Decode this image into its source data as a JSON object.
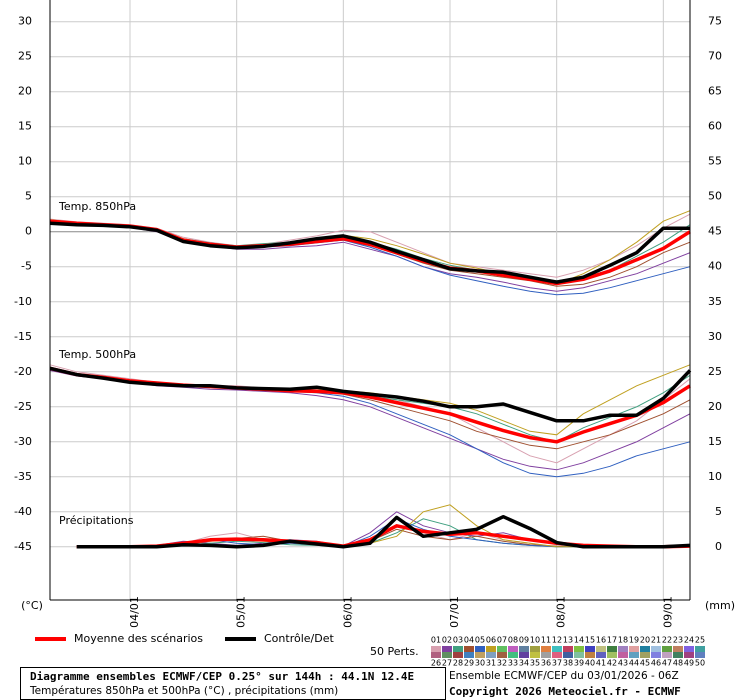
{
  "chart_data": {
    "type": "line",
    "xlim": [
      0,
      144
    ],
    "xticks": [
      {
        "value": 18,
        "label": "04/01"
      },
      {
        "value": 42,
        "label": "05/01"
      },
      {
        "value": 66,
        "label": "06/01"
      },
      {
        "value": 90,
        "label": "07/01"
      },
      {
        "value": 114,
        "label": "08/01"
      },
      {
        "value": 138,
        "label": "09/01"
      }
    ],
    "ylim": [
      -52.6,
      33.1
    ],
    "yticks": [
      30,
      25,
      20,
      15,
      10,
      5,
      0,
      -5,
      -10,
      -15,
      -20,
      -25,
      -30,
      -35,
      -40,
      -45
    ],
    "y2lim": [
      -7.6,
      78.1
    ],
    "y2ticks": [
      75,
      70,
      65,
      60,
      55,
      50,
      45,
      40,
      35,
      30,
      25,
      20,
      15,
      10,
      5,
      0
    ],
    "ylabel": "(°C)",
    "y2label": "(mm)",
    "grid": true,
    "annotations": [
      "Temp. 850hPa",
      "Temp. 500hPa",
      "Précipitations"
    ],
    "x": [
      0,
      6,
      12,
      18,
      24,
      30,
      36,
      42,
      48,
      54,
      60,
      66,
      72,
      78,
      84,
      90,
      96,
      102,
      108,
      114,
      120,
      126,
      132,
      138,
      144
    ],
    "series": [
      {
        "name": "Moyenne des scénarios",
        "color": "#ff0000",
        "values": [
          1.5,
          1.2,
          1.0,
          0.8,
          0.3,
          -1.2,
          -1.8,
          -2.2,
          -2.0,
          -1.8,
          -1.4,
          -1.0,
          -1.8,
          -3.0,
          -4.2,
          -5.2,
          -5.6,
          -6.2,
          -6.8,
          -7.4,
          -6.8,
          -5.6,
          -4.0,
          -2.4,
          0.0
        ]
      },
      {
        "name": "Contrôle/Det",
        "color": "#000000",
        "values": [
          1.2,
          1.0,
          0.9,
          0.7,
          0.2,
          -1.4,
          -2.0,
          -2.3,
          -2.1,
          -1.6,
          -1.0,
          -0.6,
          -1.5,
          -2.8,
          -4.0,
          -5.3,
          -5.6,
          -5.8,
          -6.5,
          -7.2,
          -6.5,
          -4.8,
          -3.0,
          0.5,
          0.5
        ]
      },
      {
        "name": "Moyenne des scénarios",
        "color": "#ff0000",
        "values": [
          -19.5,
          -20.4,
          -20.8,
          -21.3,
          -21.6,
          -21.9,
          -22.1,
          -22.3,
          -22.5,
          -22.7,
          -22.8,
          -23.0,
          -23.6,
          -24.4,
          -25.2,
          -26.0,
          -27.2,
          -28.4,
          -29.4,
          -30.0,
          -28.6,
          -27.4,
          -26.2,
          -24.4,
          -22.0
        ]
      },
      {
        "name": "Contrôle/Det",
        "color": "#000000",
        "values": [
          -19.5,
          -20.4,
          -20.9,
          -21.5,
          -21.8,
          -22.0,
          -22.0,
          -22.3,
          -22.4,
          -22.5,
          -22.2,
          -22.8,
          -23.2,
          -23.6,
          -24.2,
          -25.0,
          -25.0,
          -24.6,
          -25.8,
          -27.0,
          -27.0,
          -26.2,
          -26.2,
          -23.8,
          -19.8
        ]
      },
      {
        "name": "Moyenne des scénarios",
        "color": "#ff0000",
        "axis": "y2",
        "values": [
          null,
          0,
          0,
          0,
          0.1,
          0.5,
          1.0,
          1.1,
          1.0,
          0.8,
          0.6,
          0.1,
          1.0,
          3.0,
          2.2,
          1.8,
          2.0,
          1.5,
          1.0,
          0.5,
          0.2,
          0.1,
          0,
          0,
          0.1
        ]
      },
      {
        "name": "Contrôle/Det",
        "color": "#000000",
        "axis": "y2",
        "values": [
          null,
          0,
          0,
          0,
          0,
          0.3,
          0.2,
          0,
          0.2,
          0.8,
          0.4,
          0,
          0.5,
          4.2,
          1.5,
          2.0,
          2.5,
          4.3,
          2.6,
          0.6,
          0,
          0,
          0,
          0,
          0.2
        ]
      }
    ],
    "perturbations": {
      "label": "50 Perts.",
      "members": [
        {
          "name": "01",
          "color": "#d8a0b0",
          "t850": [
            1.8,
            1.4,
            1.2,
            1.0,
            0.5,
            -0.8,
            -1.5,
            -2.0,
            -1.8,
            -1.2,
            -0.6,
            0.2,
            0,
            -1.5,
            -3,
            -4.5,
            -5,
            -5.5,
            -6,
            -6.5,
            -5.5,
            -4,
            -2,
            0.5,
            2.5
          ],
          "t500": [
            -19,
            -20,
            -20.5,
            -21,
            -21.5,
            -21.8,
            -22,
            -22,
            -22.3,
            -22.5,
            -22.5,
            -22.8,
            -23.5,
            -24,
            -25,
            -26,
            -28,
            -30,
            -32,
            -33,
            -31,
            -29,
            -27,
            -24,
            -21
          ],
          "precip": [
            null,
            0,
            0,
            0,
            0,
            0.5,
            1.5,
            2,
            1,
            1,
            0.5,
            0,
            1,
            3,
            2,
            1,
            2,
            1,
            0.5,
            0,
            0,
            0,
            0,
            0,
            0
          ]
        },
        {
          "name": "02",
          "color": "#8040a0",
          "t850": [
            1.2,
            1.0,
            0.8,
            0.6,
            0,
            -1.5,
            -2,
            -2.5,
            -2.5,
            -2.2,
            -2,
            -1.5,
            -2.5,
            -3.5,
            -5,
            -6,
            -6.5,
            -7.2,
            -8,
            -8.5,
            -8,
            -7,
            -6,
            -4.5,
            -3
          ],
          "t500": [
            -19.8,
            -20.6,
            -21,
            -21.5,
            -22,
            -22.2,
            -22.5,
            -22.6,
            -22.8,
            -23,
            -23.4,
            -24,
            -25,
            -26.5,
            -28,
            -29.5,
            -31,
            -32.5,
            -33.5,
            -34,
            -33,
            -31.5,
            -30,
            -28,
            -26
          ],
          "precip": [
            null,
            0,
            0,
            0,
            0.2,
            0.8,
            0.5,
            0.2,
            0.5,
            1,
            0.8,
            0.1,
            2,
            5,
            3,
            2,
            1.5,
            2,
            1,
            0.5,
            0.1,
            0,
            0,
            0,
            0
          ]
        },
        {
          "name": "03",
          "color": "#40a080",
          "t850": [
            1.5,
            1.1,
            1,
            0.7,
            0.2,
            -1,
            -1.6,
            -2,
            -1.7,
            -1.5,
            -1.2,
            -0.8,
            -1.5,
            -2.5,
            -3.8,
            -4.8,
            -5.5,
            -6,
            -6.5,
            -7,
            -6.5,
            -5.5,
            -3.5,
            -1.5,
            1
          ],
          "t500": [
            -19.5,
            -20.3,
            -20.7,
            -21.2,
            -21.5,
            -21.8,
            -22,
            -22.2,
            -22.4,
            -22.6,
            -22.6,
            -22.9,
            -23.5,
            -24,
            -24.5,
            -25,
            -26,
            -27.5,
            -29,
            -30,
            -28,
            -26.5,
            -25,
            -23,
            -20.5
          ],
          "precip": [
            null,
            0,
            0,
            0,
            0,
            0.2,
            0.5,
            0.8,
            0.6,
            0.3,
            0.2,
            0,
            0.5,
            2,
            4,
            3,
            1,
            0.5,
            0.2,
            0,
            0,
            0,
            0,
            0,
            0
          ]
        },
        {
          "name": "04",
          "color": "#a05030",
          "t850": [
            1.6,
            1.3,
            1,
            0.9,
            0.4,
            -1.2,
            -1.9,
            -2.3,
            -2,
            -1.8,
            -1.5,
            -1.2,
            -2,
            -3.2,
            -4.5,
            -5.5,
            -6,
            -6.5,
            -7,
            -7.8,
            -7.5,
            -6.5,
            -5,
            -3,
            -1.5
          ],
          "t500": [
            -19.6,
            -20.5,
            -21,
            -21.4,
            -21.8,
            -22,
            -22.2,
            -22.4,
            -22.6,
            -22.7,
            -22.9,
            -23.2,
            -24,
            -25,
            -26,
            -27,
            -28.5,
            -29.5,
            -30.5,
            -31,
            -30,
            -29,
            -27.5,
            -26,
            -24
          ],
          "precip": [
            null,
            0,
            0,
            0,
            0.1,
            0.3,
            0.8,
            1.2,
            1.5,
            0.8,
            0.5,
            0.1,
            0.8,
            2.5,
            1.5,
            1,
            1.5,
            0.8,
            0.3,
            0.1,
            0,
            0,
            0,
            0,
            0
          ]
        },
        {
          "name": "05",
          "color": "#3060c0",
          "t850": [
            1.3,
            1,
            0.9,
            0.8,
            0.3,
            -1.3,
            -2,
            -2.4,
            -2.2,
            -2,
            -1.6,
            -1.2,
            -2.2,
            -3.5,
            -5,
            -6.2,
            -7,
            -7.8,
            -8.5,
            -9,
            -8.8,
            -8,
            -7,
            -6,
            -5
          ],
          "t500": [
            -19.4,
            -20.3,
            -20.8,
            -21.2,
            -21.6,
            -22,
            -22.2,
            -22.4,
            -22.6,
            -22.8,
            -23,
            -23.5,
            -24.5,
            -26,
            -27.5,
            -29,
            -31,
            -33,
            -34.5,
            -35,
            -34.5,
            -33.5,
            -32,
            -31,
            -30
          ],
          "precip": [
            null,
            0,
            0,
            0,
            0,
            0.6,
            1,
            0.5,
            0.3,
            0.5,
            0.3,
            0,
            1.5,
            4,
            2.5,
            1.5,
            1,
            0.5,
            0.2,
            0,
            0,
            0,
            0,
            0,
            0
          ]
        },
        {
          "name": "06",
          "color": "#c0a020",
          "t850": [
            1.7,
            1.3,
            1.1,
            0.9,
            0.4,
            -1,
            -1.7,
            -2.1,
            -1.9,
            -1.6,
            -1.1,
            -0.5,
            -1,
            -2,
            -3.2,
            -4.5,
            -5.2,
            -6,
            -6.8,
            -7.5,
            -6,
            -4,
            -1.5,
            1.5,
            3
          ],
          "t500": [
            -19.5,
            -20.4,
            -20.8,
            -21.3,
            -21.7,
            -21.9,
            -22.1,
            -22.3,
            -22.5,
            -22.6,
            -22.6,
            -22.7,
            -23,
            -23.5,
            -24,
            -24.5,
            -25.5,
            -27,
            -28.5,
            -29,
            -26,
            -24,
            -22,
            -20.5,
            -19
          ],
          "precip": [
            null,
            0,
            0,
            0,
            0,
            0.4,
            0.8,
            1,
            0.8,
            0.6,
            0.3,
            0,
            0.5,
            1.5,
            5,
            6,
            3,
            1,
            0.5,
            0,
            0,
            0,
            0,
            0,
            0
          ]
        },
        {
          "name": "07",
          "color": "#60c060"
        },
        {
          "name": "08",
          "color": "#c060c0"
        },
        {
          "name": "09",
          "color": "#6080a0"
        },
        {
          "name": "10",
          "color": "#a0a040"
        },
        {
          "name": "11",
          "color": "#e08040"
        },
        {
          "name": "12",
          "color": "#40c0c0"
        },
        {
          "name": "13",
          "color": "#c04060"
        },
        {
          "name": "14",
          "color": "#80c040"
        },
        {
          "name": "15",
          "color": "#4040c0"
        },
        {
          "name": "16",
          "color": "#c0c080"
        },
        {
          "name": "17",
          "color": "#408040"
        },
        {
          "name": "18",
          "color": "#a080c0"
        },
        {
          "name": "19",
          "color": "#e0a0a0"
        },
        {
          "name": "20",
          "color": "#2080a0"
        },
        {
          "name": "21",
          "color": "#a0c0e0"
        },
        {
          "name": "22",
          "color": "#60a040"
        },
        {
          "name": "23",
          "color": "#c08060"
        },
        {
          "name": "24",
          "color": "#8060e0"
        },
        {
          "name": "25",
          "color": "#40a0a0"
        },
        {
          "name": "26",
          "color": "#b06080"
        },
        {
          "name": "27",
          "color": "#609060"
        },
        {
          "name": "28",
          "color": "#a04040"
        },
        {
          "name": "29",
          "color": "#4080c0"
        },
        {
          "name": "30",
          "color": "#c0a060"
        },
        {
          "name": "31",
          "color": "#80a0c0"
        },
        {
          "name": "32",
          "color": "#a06040"
        },
        {
          "name": "33",
          "color": "#40c080"
        },
        {
          "name": "34",
          "color": "#6040a0"
        },
        {
          "name": "35",
          "color": "#c0c040"
        },
        {
          "name": "36",
          "color": "#a0a0a0"
        },
        {
          "name": "37",
          "color": "#e06080"
        },
        {
          "name": "38",
          "color": "#4060a0"
        },
        {
          "name": "39",
          "color": "#80c0a0"
        },
        {
          "name": "40",
          "color": "#c08040"
        },
        {
          "name": "41",
          "color": "#6060c0"
        },
        {
          "name": "42",
          "color": "#a0c060"
        },
        {
          "name": "43",
          "color": "#c060a0"
        },
        {
          "name": "44",
          "color": "#60a0c0"
        },
        {
          "name": "45",
          "color": "#a0a060"
        },
        {
          "name": "46",
          "color": "#8080e0"
        },
        {
          "name": "47",
          "color": "#c0a0c0"
        },
        {
          "name": "48",
          "color": "#408060"
        },
        {
          "name": "49",
          "color": "#a04080"
        },
        {
          "name": "50",
          "color": "#6080c0"
        }
      ]
    }
  },
  "footer": {
    "title": "Diagramme ensembles ECMWF/CEP 0.25° sur 144h : 44.1N 12.4E",
    "subtitle": "Températures 850hPa et 500hPa (°C) , précipitations (mm)",
    "run": "Ensemble ECMWF/CEP du 03/01/2026 - 06Z",
    "copyright": "Copyright 2026 Meteociel.fr - ECMWF"
  }
}
